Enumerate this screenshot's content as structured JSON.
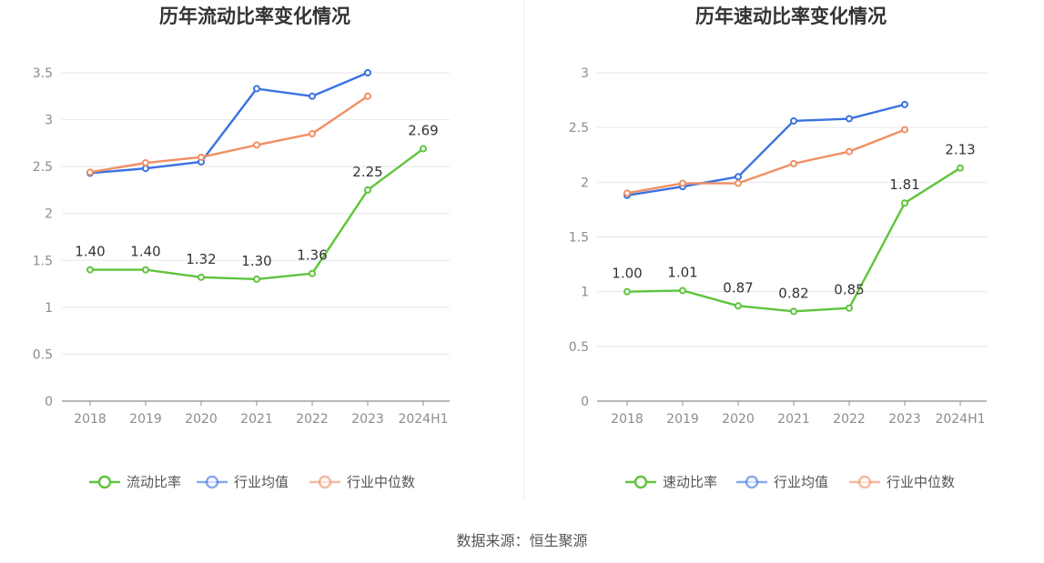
{
  "source_text": "数据来源：恒生聚源",
  "colors": {
    "primary": "#5fc43d",
    "average": "#3a72e0",
    "median": "#f08f64"
  },
  "chart_data": [
    {
      "type": "line",
      "title": "历年流动比率变化情况",
      "categories": [
        "2018",
        "2019",
        "2020",
        "2021",
        "2022",
        "2023",
        "2024H1"
      ],
      "ylim": [
        0,
        3.5
      ],
      "yticks": [
        "0",
        "0.5",
        "1",
        "1.5",
        "2",
        "2.5",
        "3",
        "3.5"
      ],
      "grid": true,
      "legend_position": "bottom",
      "series": [
        {
          "name": "流动比率",
          "color": "#5fc43d",
          "values": [
            1.4,
            1.4,
            1.32,
            1.3,
            1.36,
            2.25,
            2.69
          ],
          "labels": [
            "1.40",
            "1.40",
            "1.32",
            "1.30",
            "1.36",
            "2.25",
            "2.69"
          ]
        },
        {
          "name": "行业均值",
          "color": "#3a72e0",
          "values": [
            2.43,
            2.48,
            2.55,
            3.33,
            3.25,
            3.5,
            null
          ]
        },
        {
          "name": "行业中位数",
          "color": "#f08f64",
          "values": [
            2.44,
            2.54,
            2.6,
            2.73,
            2.85,
            3.25,
            null
          ]
        }
      ]
    },
    {
      "type": "line",
      "title": "历年速动比率变化情况",
      "categories": [
        "2018",
        "2019",
        "2020",
        "2021",
        "2022",
        "2023",
        "2024H1"
      ],
      "ylim": [
        0,
        3
      ],
      "yticks": [
        "0",
        "0.5",
        "1",
        "1.5",
        "2",
        "2.5",
        "3"
      ],
      "grid": true,
      "legend_position": "bottom",
      "series": [
        {
          "name": "速动比率",
          "color": "#5fc43d",
          "values": [
            1.0,
            1.01,
            0.87,
            0.82,
            0.85,
            1.81,
            2.13
          ],
          "labels": [
            "1.00",
            "1.01",
            "0.87",
            "0.82",
            "0.85",
            "1.81",
            "2.13"
          ]
        },
        {
          "name": "行业均值",
          "color": "#3a72e0",
          "values": [
            1.88,
            1.96,
            2.05,
            2.56,
            2.58,
            2.71,
            null
          ]
        },
        {
          "name": "行业中位数",
          "color": "#f08f64",
          "values": [
            1.9,
            1.99,
            1.99,
            2.17,
            2.28,
            2.48,
            null
          ]
        }
      ]
    }
  ]
}
